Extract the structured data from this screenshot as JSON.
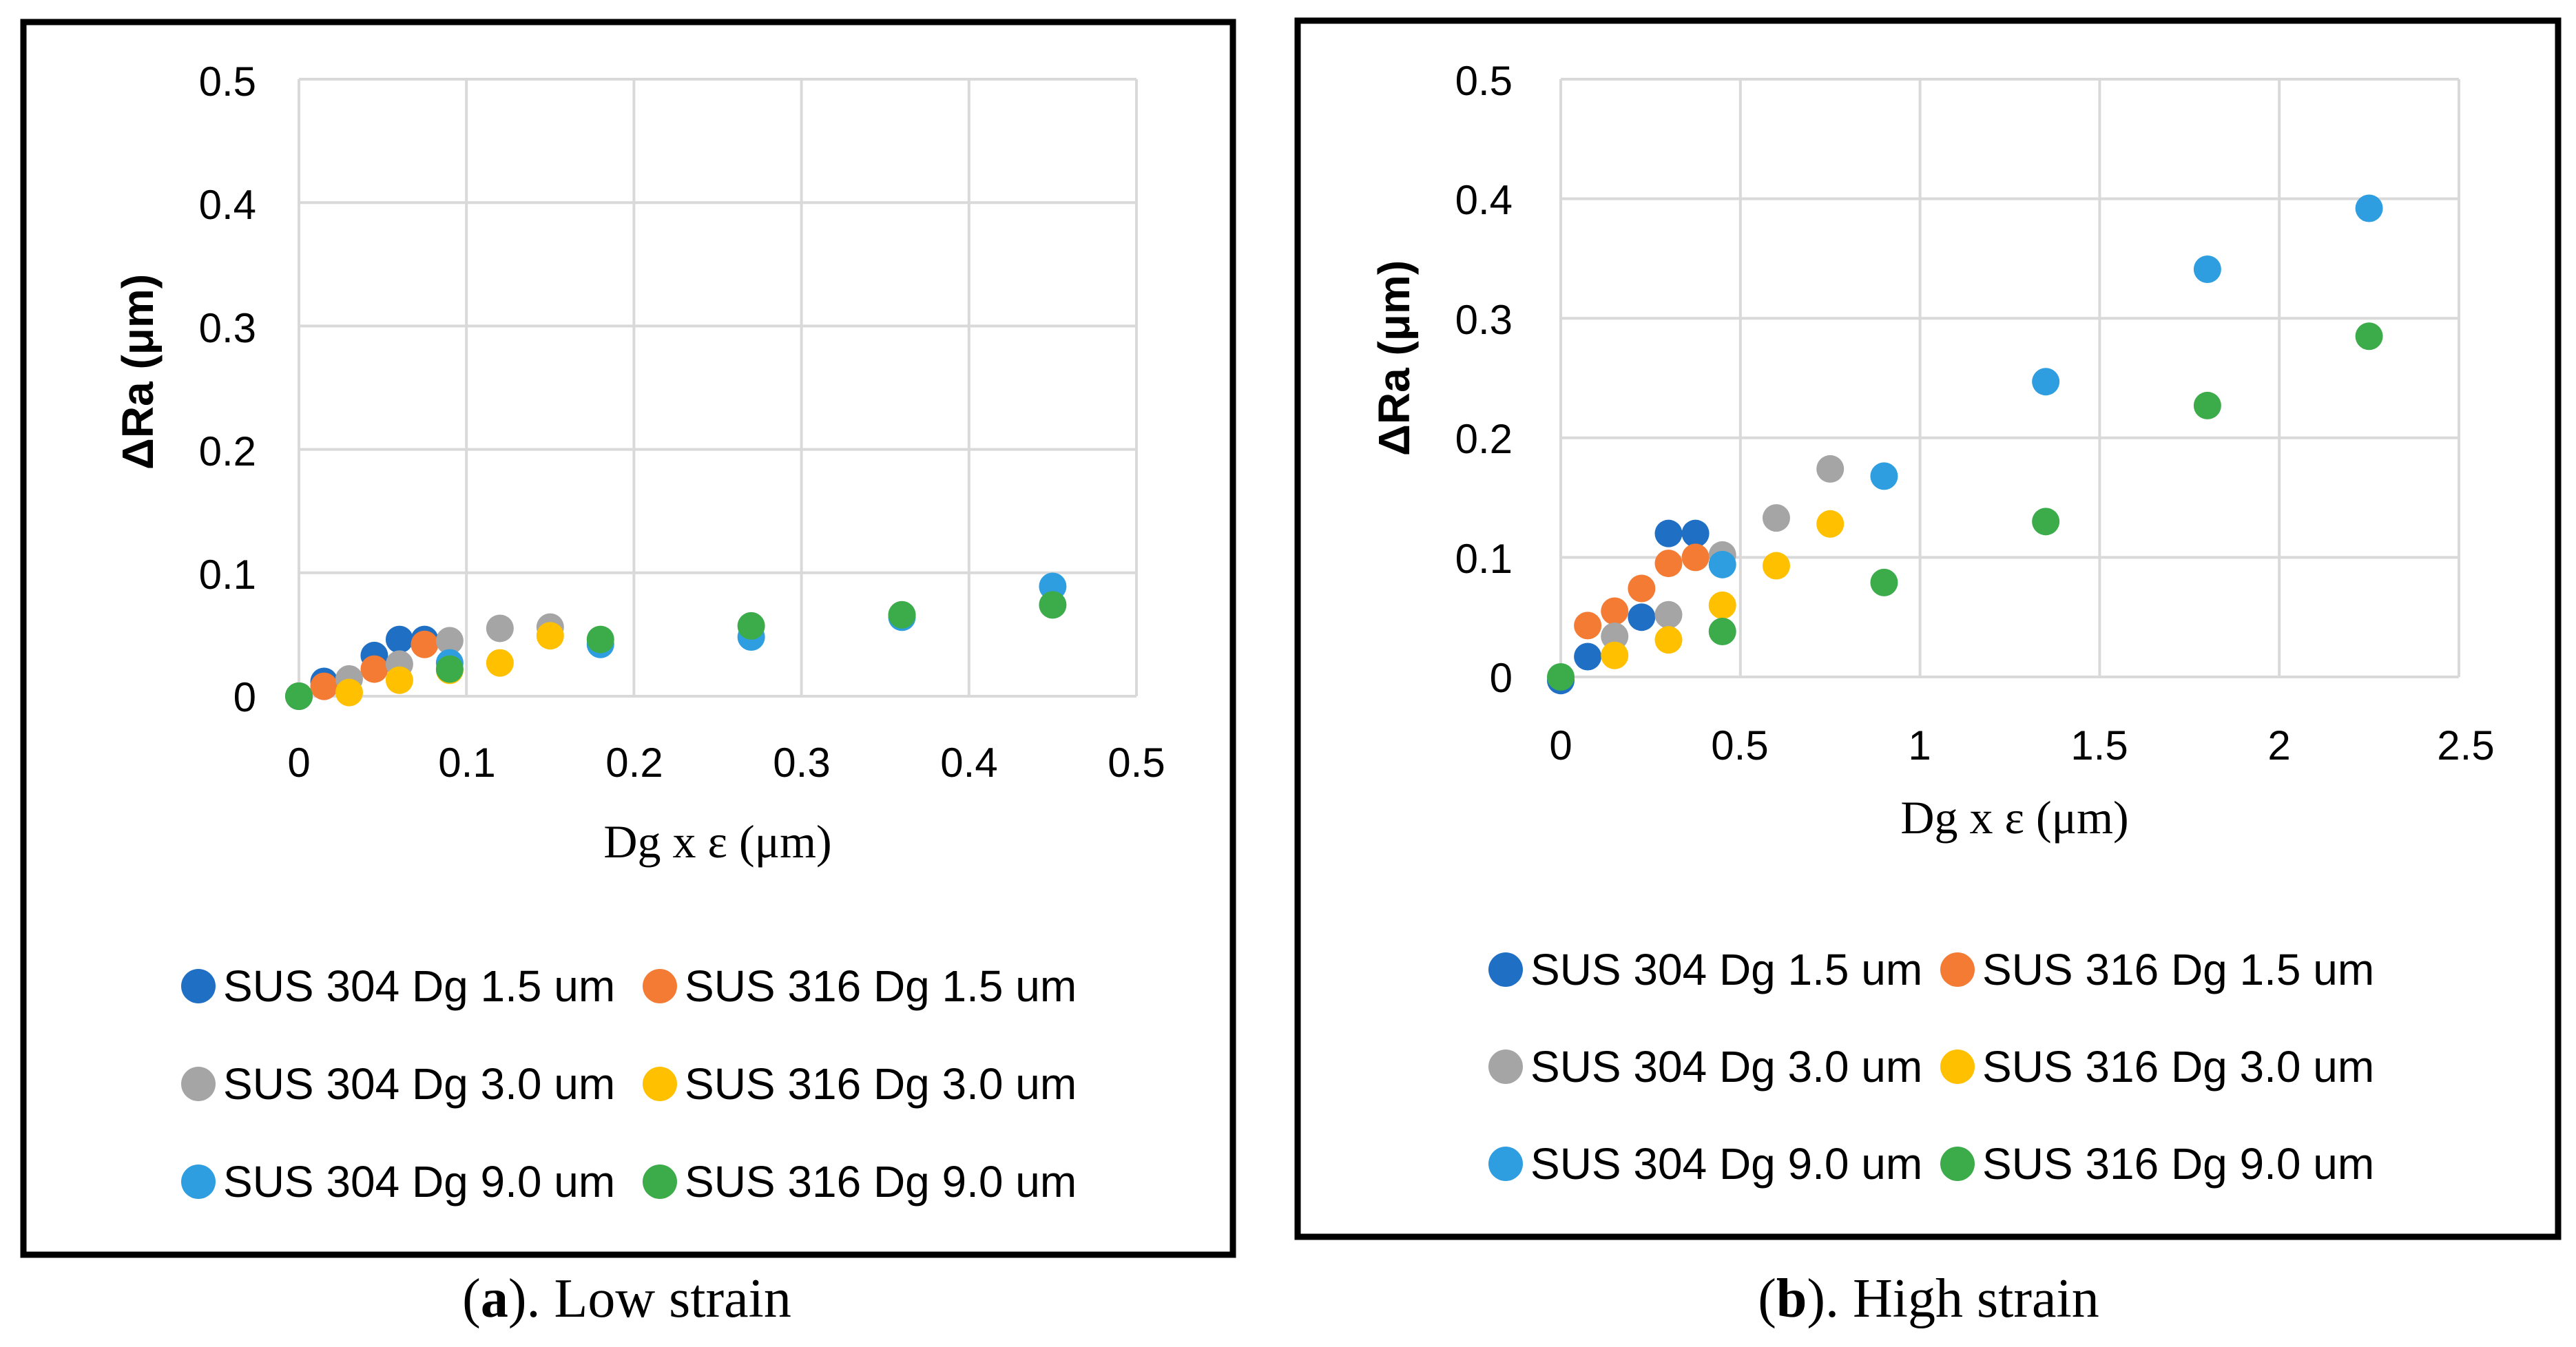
{
  "chart_data": [
    {
      "type": "scatter",
      "panel": "a",
      "caption": {
        "letter": "a",
        "text": "). Low strain",
        "open": "("
      },
      "xlabel": "Dg x ε (μm)",
      "ylabel": "ΔRa (μm)",
      "xlim": [
        0,
        0.5
      ],
      "ylim": [
        0,
        0.5
      ],
      "xticks": [
        "0",
        "0.1",
        "0.2",
        "0.3",
        "0.4",
        "0.5"
      ],
      "yticks": [
        "0",
        "0.1",
        "0.2",
        "0.3",
        "0.4",
        "0.5"
      ],
      "grid": true,
      "legend_position": "bottom",
      "series": [
        {
          "name": "SUS 304 Dg 1.5 um",
          "color": "#1f6fc5",
          "points": [
            [
              0,
              0
            ],
            [
              0.015,
              0.012
            ],
            [
              0.045,
              0.033
            ],
            [
              0.06,
              0.046
            ],
            [
              0.075,
              0.046
            ]
          ]
        },
        {
          "name": "SUS 316 Dg 1.5 um",
          "color": "#f47b34",
          "points": [
            [
              0,
              0
            ],
            [
              0.015,
              0.008
            ],
            [
              0.045,
              0.022
            ],
            [
              0.075,
              0.042
            ]
          ]
        },
        {
          "name": "SUS 304 Dg 3.0 um",
          "color": "#a5a5a5",
          "points": [
            [
              0,
              0
            ],
            [
              0.03,
              0.014
            ],
            [
              0.06,
              0.026
            ],
            [
              0.09,
              0.045
            ],
            [
              0.12,
              0.055
            ],
            [
              0.15,
              0.056
            ]
          ]
        },
        {
          "name": "SUS 316 Dg 3.0 um",
          "color": "#ffc000",
          "points": [
            [
              0,
              0
            ],
            [
              0.03,
              0.003
            ],
            [
              0.06,
              0.013
            ],
            [
              0.09,
              0.021
            ],
            [
              0.12,
              0.027
            ],
            [
              0.15,
              0.049
            ]
          ]
        },
        {
          "name": "SUS 304 Dg 9.0 um",
          "color": "#2e9ee0",
          "points": [
            [
              0,
              0
            ],
            [
              0.09,
              0.027
            ],
            [
              0.18,
              0.042
            ],
            [
              0.27,
              0.048
            ],
            [
              0.36,
              0.064
            ],
            [
              0.45,
              0.089
            ]
          ]
        },
        {
          "name": "SUS 316 Dg 9.0 um",
          "color": "#3cab4a",
          "points": [
            [
              0,
              0
            ],
            [
              0.09,
              0.022
            ],
            [
              0.18,
              0.046
            ],
            [
              0.27,
              0.057
            ],
            [
              0.36,
              0.066
            ],
            [
              0.45,
              0.074
            ]
          ]
        }
      ]
    },
    {
      "type": "scatter",
      "panel": "b",
      "caption": {
        "letter": "b",
        "text": "). High strain",
        "open": "("
      },
      "xlabel": "Dg x ε (μm)",
      "ylabel": "ΔRa (μm)",
      "xlim": [
        0,
        2.5
      ],
      "ylim": [
        0,
        0.5
      ],
      "xticks": [
        "0",
        "0.5",
        "1",
        "1.5",
        "2",
        "2.5"
      ],
      "yticks": [
        "0",
        "0.1",
        "0.2",
        "0.3",
        "0.4",
        "0.5"
      ],
      "grid": true,
      "legend_position": "bottom",
      "series": [
        {
          "name": "SUS 304 Dg 1.5 um",
          "color": "#1f6fc5",
          "points": [
            [
              0,
              -0.003
            ],
            [
              0.075,
              0.017
            ],
            [
              0.225,
              0.05
            ],
            [
              0.3,
              0.12
            ],
            [
              0.375,
              0.12
            ]
          ]
        },
        {
          "name": "SUS 316 Dg 1.5 um",
          "color": "#f47b34",
          "points": [
            [
              0.075,
              0.043
            ],
            [
              0.15,
              0.055
            ],
            [
              0.225,
              0.074
            ],
            [
              0.3,
              0.095
            ],
            [
              0.375,
              0.1
            ]
          ]
        },
        {
          "name": "SUS 304 Dg 3.0 um",
          "color": "#a5a5a5",
          "points": [
            [
              0.15,
              0.034
            ],
            [
              0.3,
              0.052
            ],
            [
              0.45,
              0.102
            ],
            [
              0.6,
              0.133
            ],
            [
              0.75,
              0.174
            ]
          ]
        },
        {
          "name": "SUS 316 Dg 3.0 um",
          "color": "#ffc000",
          "points": [
            [
              0.15,
              0.018
            ],
            [
              0.3,
              0.031
            ],
            [
              0.45,
              0.06
            ],
            [
              0.6,
              0.093
            ],
            [
              0.75,
              0.128
            ]
          ]
        },
        {
          "name": "SUS 304 Dg 9.0 um",
          "color": "#2e9ee0",
          "points": [
            [
              0.45,
              0.094
            ],
            [
              0.9,
              0.168
            ],
            [
              1.35,
              0.247
            ],
            [
              1.8,
              0.341
            ],
            [
              2.25,
              0.392
            ]
          ]
        },
        {
          "name": "SUS 316 Dg 9.0 um",
          "color": "#3cab4a",
          "points": [
            [
              0,
              0
            ],
            [
              0.45,
              0.038
            ],
            [
              0.9,
              0.079
            ],
            [
              1.35,
              0.13
            ],
            [
              1.8,
              0.227
            ],
            [
              2.25,
              0.285
            ]
          ]
        }
      ]
    }
  ]
}
